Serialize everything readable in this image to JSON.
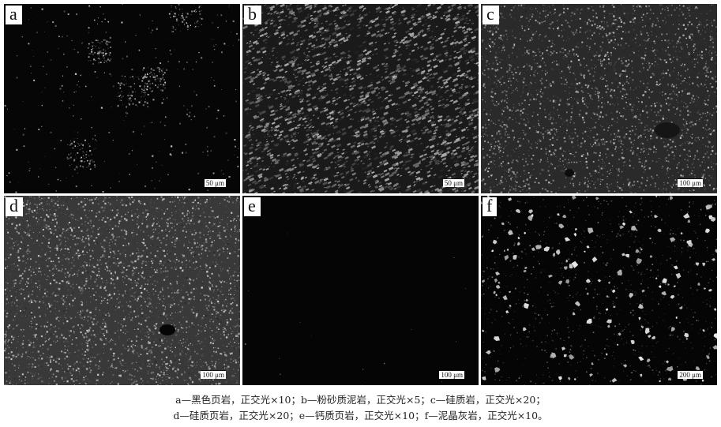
{
  "panels": [
    {
      "letter": "a",
      "scale": "50 μm"
    },
    {
      "letter": "b",
      "scale": "50 μm"
    },
    {
      "letter": "c",
      "scale": "100 μm"
    },
    {
      "letter": "d",
      "scale": "100 μm"
    },
    {
      "letter": "e",
      "scale": "100 μm"
    },
    {
      "letter": "f",
      "scale": "200 μm"
    }
  ],
  "caption": {
    "line1": "a—黑色页岩，正交光×10；b—粉砂质泥岩，正交光×5；c—硅质岩，正交光×20；",
    "line2": "d—硅质页岩，正交光×20；e—钙质页岩，正交光×10；f—泥晶灰岩，正交光×10。"
  }
}
